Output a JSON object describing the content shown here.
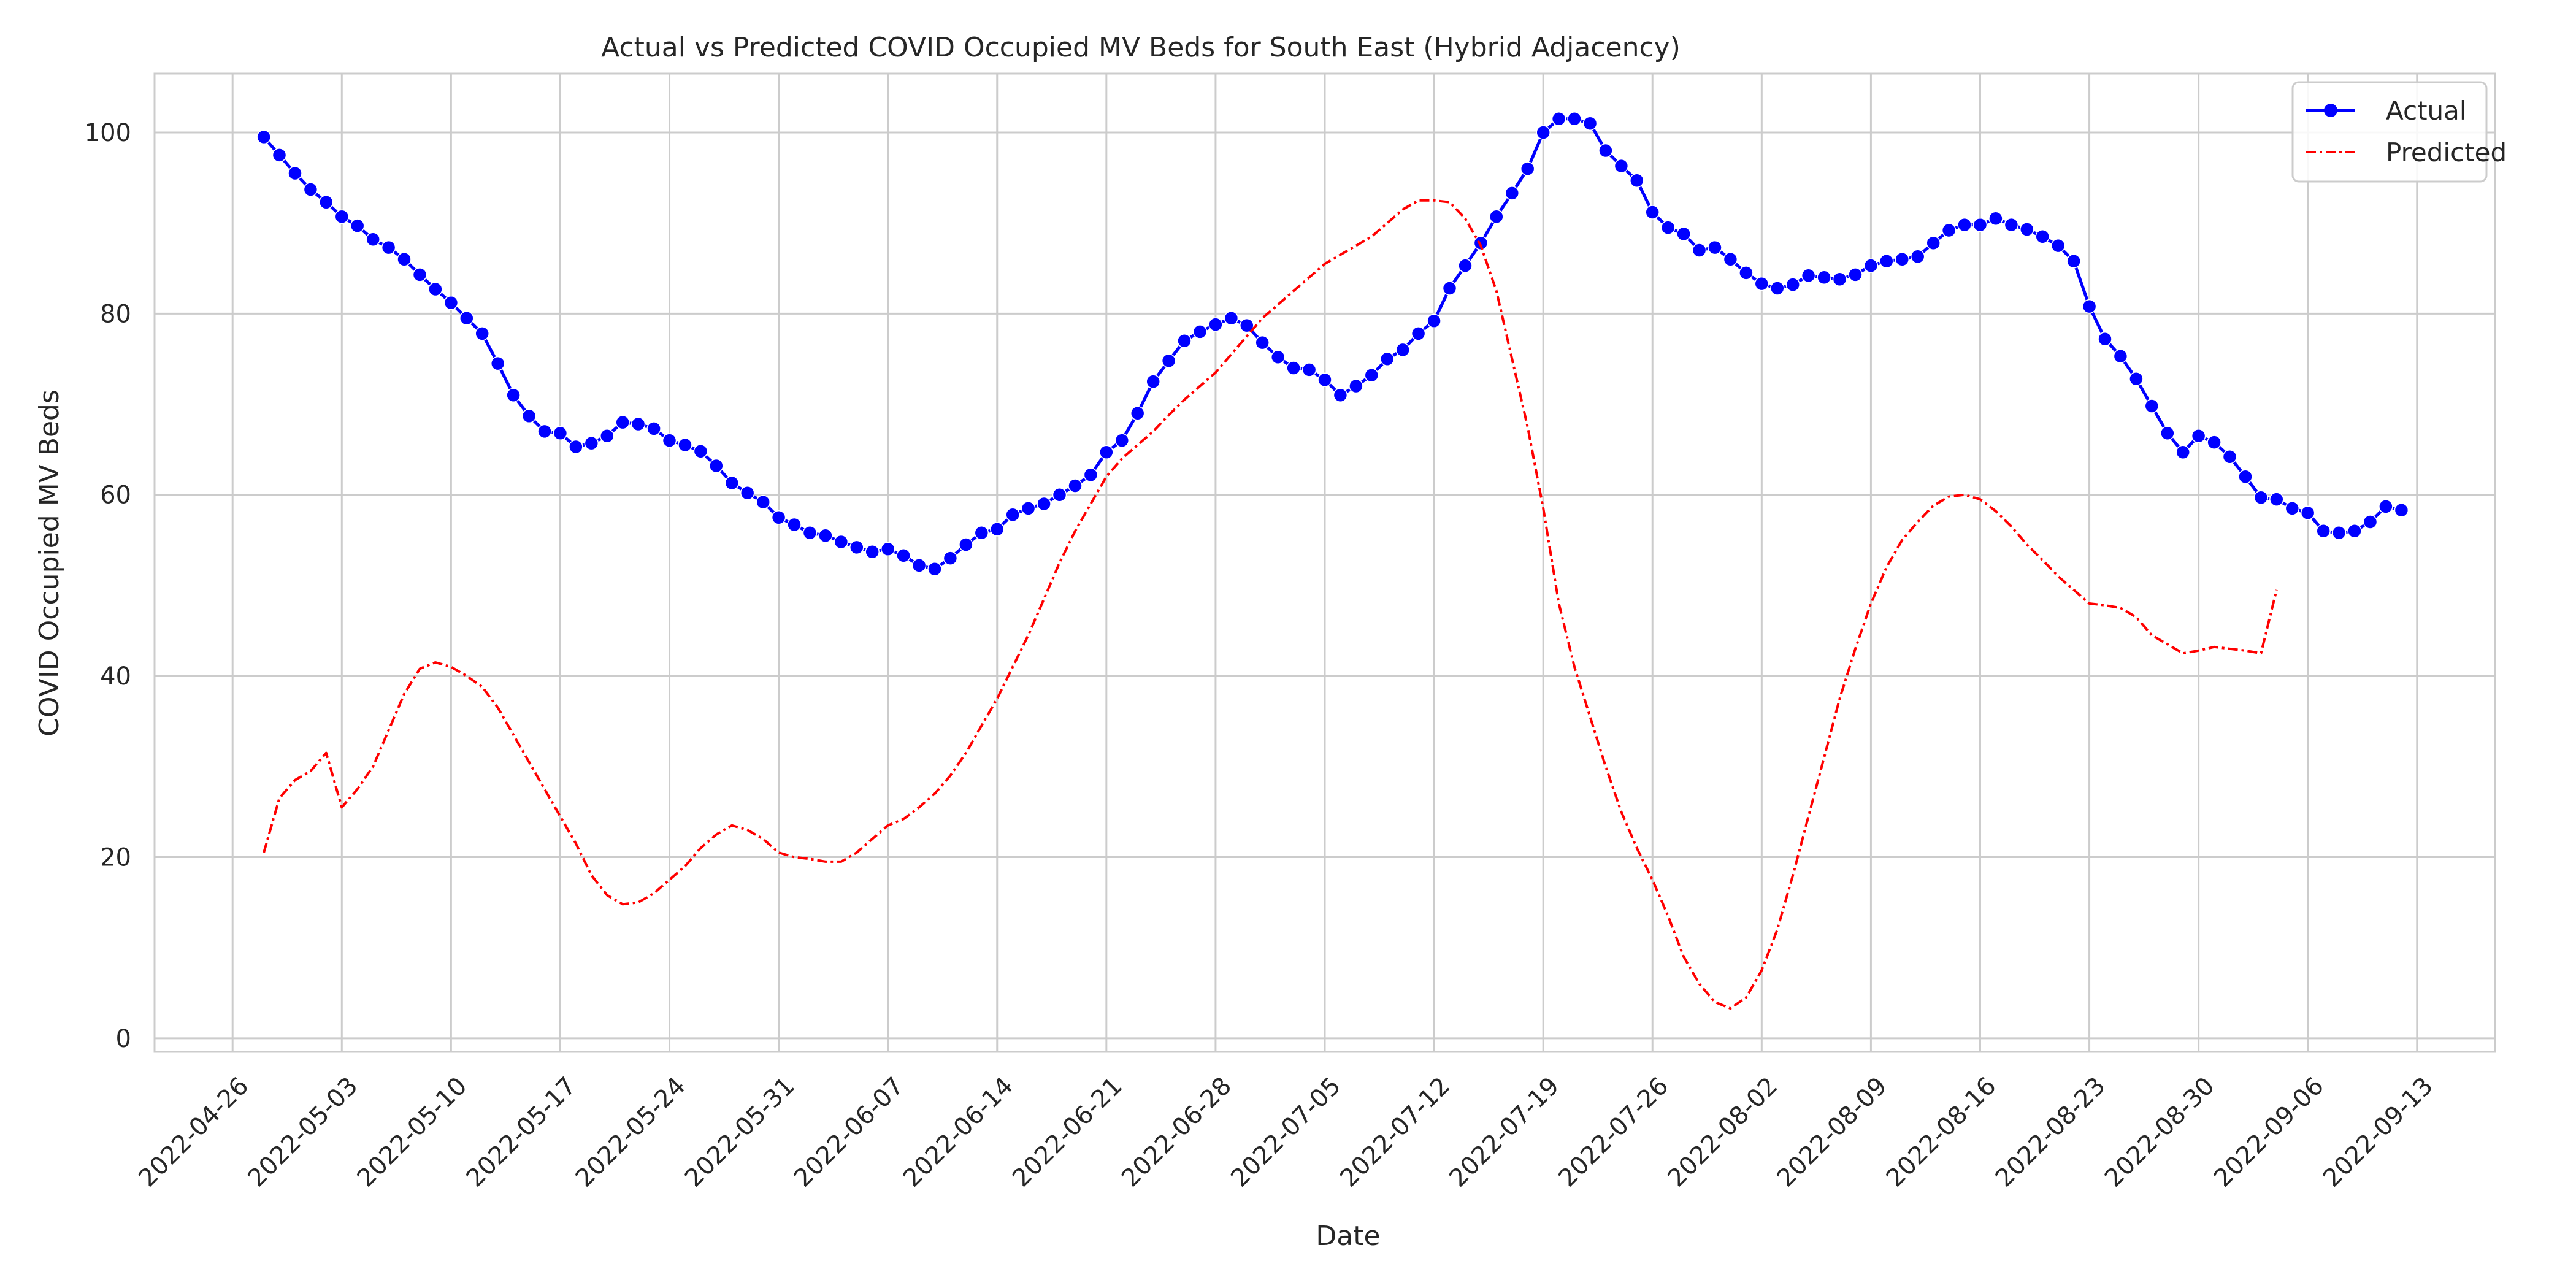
{
  "chart_data": {
    "type": "line",
    "title": "Actual vs Predicted COVID Occupied MV Beds for South East (Hybrid Adjacency)",
    "xlabel": "Date",
    "ylabel": "COVID Occupied MV Beds",
    "ylim": [
      -1.5,
      106.5
    ],
    "xlim": [
      "2022-04-21",
      "2022-09-18"
    ],
    "grid": true,
    "legend": "top-right",
    "x_ticks": [
      "2022-04-26",
      "2022-05-03",
      "2022-05-10",
      "2022-05-17",
      "2022-05-24",
      "2022-05-31",
      "2022-06-07",
      "2022-06-14",
      "2022-06-21",
      "2022-06-28",
      "2022-07-05",
      "2022-07-12",
      "2022-07-19",
      "2022-07-26",
      "2022-08-02",
      "2022-08-09",
      "2022-08-16",
      "2022-08-23",
      "2022-08-30",
      "2022-09-06",
      "2022-09-13"
    ],
    "y_ticks": [
      0,
      20,
      40,
      60,
      80,
      100
    ],
    "x_start": "2022-04-28",
    "series": [
      {
        "name": "Actual",
        "color": "#0000ff",
        "style": "solid-marker",
        "values": [
          99.5,
          97.5,
          95.5,
          93.7,
          92.3,
          90.7,
          89.7,
          88.2,
          87.3,
          86.0,
          84.3,
          82.7,
          81.2,
          79.5,
          77.8,
          74.5,
          71.0,
          68.7,
          67.0,
          66.8,
          65.3,
          65.7,
          66.5,
          68.0,
          67.8,
          67.3,
          66.0,
          65.5,
          64.8,
          63.2,
          61.3,
          60.2,
          59.2,
          57.5,
          56.7,
          55.8,
          55.5,
          54.8,
          54.2,
          53.7,
          54.0,
          53.3,
          52.2,
          51.8,
          53.0,
          54.5,
          55.8,
          56.2,
          57.8,
          58.5,
          59.0,
          60.0,
          61.0,
          62.2,
          64.7,
          66.0,
          69.0,
          72.5,
          74.8,
          77.0,
          78.0,
          78.8,
          79.5,
          78.7,
          76.8,
          75.2,
          74.0,
          73.8,
          72.7,
          71.0,
          72.0,
          73.2,
          75.0,
          76.0,
          77.8,
          79.2,
          82.8,
          85.3,
          87.8,
          90.7,
          93.3,
          96.0,
          100.0,
          101.5,
          101.5,
          101.0,
          98.0,
          96.3,
          94.7,
          91.2,
          89.5,
          88.8,
          87.0,
          87.3,
          86.0,
          84.5,
          83.3,
          82.8,
          83.2,
          84.2,
          84.0,
          83.8,
          84.3,
          85.3,
          85.8,
          86.0,
          86.3,
          87.8,
          89.2,
          89.8,
          89.8,
          90.5,
          89.8,
          89.3,
          88.5,
          87.5,
          85.8,
          80.8,
          77.2,
          75.3,
          72.8,
          69.8,
          66.8,
          64.7,
          66.5,
          65.8,
          64.2,
          62.0,
          59.7,
          59.5,
          58.5,
          58.0,
          56.0,
          55.8,
          56.0,
          57.0,
          58.7,
          58.3
        ]
      },
      {
        "name": "Predicted",
        "color": "#ff0000",
        "style": "dashdot",
        "values": [
          20.5,
          26.5,
          28.5,
          29.5,
          31.5,
          25.5,
          27.5,
          30.0,
          34.0,
          38.0,
          40.8,
          41.5,
          41.0,
          40.0,
          38.8,
          36.5,
          33.5,
          30.5,
          27.5,
          24.5,
          21.5,
          18.0,
          15.8,
          14.8,
          15.0,
          16.0,
          17.5,
          19.0,
          21.0,
          22.5,
          23.5,
          23.0,
          22.0,
          20.5,
          20.0,
          19.8,
          19.5,
          19.5,
          20.5,
          22.0,
          23.5,
          24.2,
          25.5,
          27.0,
          29.0,
          31.5,
          34.5,
          37.5,
          41.0,
          44.5,
          48.5,
          52.5,
          56.0,
          59.0,
          62.0,
          64.0,
          65.5,
          67.0,
          68.8,
          70.5,
          72.0,
          73.5,
          75.5,
          77.5,
          79.5,
          81.0,
          82.5,
          84.0,
          85.5,
          86.5,
          87.5,
          88.5,
          90.0,
          91.5,
          92.5,
          92.5,
          92.3,
          90.5,
          87.5,
          82.5,
          75.0,
          67.5,
          58.5,
          48.0,
          41.0,
          35.5,
          30.0,
          25.0,
          21.0,
          17.5,
          13.5,
          9.0,
          6.0,
          4.0,
          3.3,
          4.5,
          7.5,
          12.0,
          18.0,
          24.5,
          31.0,
          37.5,
          43.0,
          48.0,
          52.0,
          55.0,
          57.0,
          58.8,
          59.8,
          60.0,
          59.5,
          58.2,
          56.5,
          54.5,
          52.8,
          51.0,
          49.5,
          48.0,
          47.8,
          47.5,
          46.5,
          44.5,
          43.5,
          42.5,
          42.8,
          43.2,
          43.0,
          42.8,
          42.5,
          49.5
        ]
      }
    ]
  }
}
